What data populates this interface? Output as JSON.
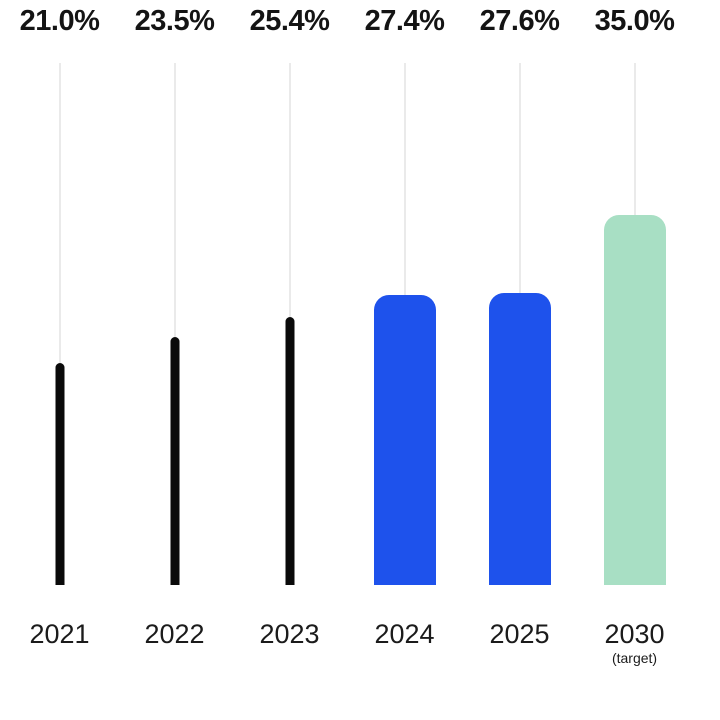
{
  "page": {
    "background": "#ffffff"
  },
  "chart_data": {
    "type": "bar",
    "title": "",
    "categories": [
      "2021",
      "2022",
      "2023",
      "2024",
      "2025",
      "2030"
    ],
    "sublabels": [
      "",
      "",
      "",
      "",
      "",
      "(target)"
    ],
    "values": [
      21.0,
      23.5,
      25.4,
      27.4,
      27.6,
      35.0
    ],
    "value_labels": [
      "21.0%",
      "23.5%",
      "25.4%",
      "27.4%",
      "27.6%",
      "35.0%"
    ],
    "series": [
      {
        "name": "share-percent",
        "values": [
          21.0,
          23.5,
          25.4,
          27.4,
          27.6,
          35.0
        ]
      }
    ],
    "bar_colors": [
      "#0a0a0a",
      "#0a0a0a",
      "#0a0a0a",
      "#1e52ec",
      "#1e52ec",
      "#a8dfc4"
    ],
    "bar_styles": [
      "thin",
      "thin",
      "thin",
      "wide",
      "wide",
      "wide"
    ],
    "drop_line_color": "#d5d5d5",
    "value_label_color": "#141414",
    "axis_label_color": "#1b1b1b",
    "ylim": [
      0,
      35
    ],
    "xlabel": "",
    "ylabel": "",
    "grid": "off",
    "legend": "none"
  }
}
